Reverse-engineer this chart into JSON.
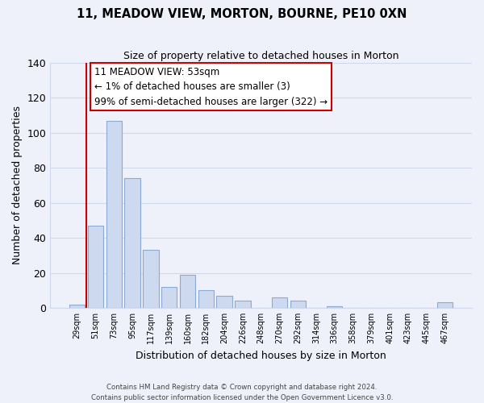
{
  "title": "11, MEADOW VIEW, MORTON, BOURNE, PE10 0XN",
  "subtitle": "Size of property relative to detached houses in Morton",
  "xlabel": "Distribution of detached houses by size in Morton",
  "ylabel": "Number of detached properties",
  "bar_labels": [
    "29sqm",
    "51sqm",
    "73sqm",
    "95sqm",
    "117sqm",
    "139sqm",
    "160sqm",
    "182sqm",
    "204sqm",
    "226sqm",
    "248sqm",
    "270sqm",
    "292sqm",
    "314sqm",
    "336sqm",
    "358sqm",
    "379sqm",
    "401sqm",
    "423sqm",
    "445sqm",
    "467sqm"
  ],
  "bar_values": [
    2,
    47,
    107,
    74,
    33,
    12,
    19,
    10,
    7,
    4,
    0,
    6,
    4,
    0,
    1,
    0,
    0,
    0,
    0,
    0,
    3
  ],
  "bar_color": "#cdd9ef",
  "bar_edge_color": "#8aaad4",
  "vline_x": 0.5,
  "vline_color": "#cc0000",
  "ylim": [
    0,
    140
  ],
  "yticks": [
    0,
    20,
    40,
    60,
    80,
    100,
    120,
    140
  ],
  "annotation_line1": "11 MEADOW VIEW: 53sqm",
  "annotation_line2": "← 1% of detached houses are smaller (3)",
  "annotation_line3": "99% of semi-detached houses are larger (322) →",
  "footer_line1": "Contains HM Land Registry data © Crown copyright and database right 2024.",
  "footer_line2": "Contains public sector information licensed under the Open Government Licence v3.0.",
  "background_color": "#eef1fa",
  "grid_color": "#d0d8ee"
}
